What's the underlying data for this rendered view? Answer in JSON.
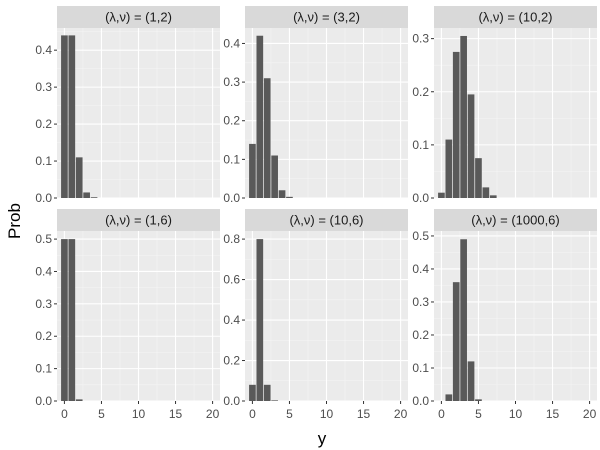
{
  "colors": {
    "panel_bg": "#ebebeb",
    "grid_major": "#ffffff",
    "grid_minor": "#f4f4f4",
    "strip_bg": "#d9d9d9",
    "bar_fill": "#595959",
    "tick_text": "#4d4d4d"
  },
  "chart_data": {
    "type": "bar",
    "facet_layout": "2 rows x 3 columns, shared x axis, free y axis",
    "xlabel": "y",
    "ylabel": "Prob",
    "xlim": [
      -1,
      21
    ],
    "x_ticks": [
      0,
      5,
      10,
      15,
      20
    ],
    "x": [
      0,
      1,
      2,
      3,
      4,
      5,
      6,
      7
    ],
    "panels": [
      {
        "strip": "(λ,ν) = (1,2)",
        "values": [
          0.44,
          0.44,
          0.11,
          0.015,
          0.002,
          0,
          0,
          0
        ],
        "ylim": [
          0,
          0.46
        ],
        "y_ticks": [
          0.0,
          0.1,
          0.2,
          0.3,
          0.4
        ],
        "y_tick_labels": [
          "0.0",
          "0.1",
          "0.2",
          "0.3",
          "0.4"
        ]
      },
      {
        "strip": "(λ,ν) = (3,2)",
        "values": [
          0.14,
          0.42,
          0.31,
          0.11,
          0.02,
          0.003,
          0,
          0
        ],
        "ylim": [
          0,
          0.44
        ],
        "y_ticks": [
          0.0,
          0.1,
          0.2,
          0.3,
          0.4
        ],
        "y_tick_labels": [
          "0.0",
          "0.1",
          "0.2",
          "0.3",
          "0.4"
        ]
      },
      {
        "strip": "(λ,ν) = (10,2)",
        "values": [
          0.01,
          0.11,
          0.275,
          0.305,
          0.195,
          0.075,
          0.02,
          0.005
        ],
        "ylim": [
          0,
          0.32
        ],
        "y_ticks": [
          0.0,
          0.1,
          0.2,
          0.3
        ],
        "y_tick_labels": [
          "0.0",
          "0.1",
          "0.2",
          "0.3"
        ]
      },
      {
        "strip": "(λ,ν) = (1,6)",
        "values": [
          0.5,
          0.5,
          0.005,
          0,
          0,
          0,
          0,
          0
        ],
        "ylim": [
          0,
          0.525
        ],
        "y_ticks": [
          0.0,
          0.1,
          0.2,
          0.3,
          0.4,
          0.5
        ],
        "y_tick_labels": [
          "0.0",
          "0.1",
          "0.2",
          "0.3",
          "0.4",
          "0.5"
        ]
      },
      {
        "strip": "(λ,ν) = (10,6)",
        "values": [
          0.08,
          0.8,
          0.08,
          0.003,
          0,
          0,
          0,
          0
        ],
        "ylim": [
          0,
          0.84
        ],
        "y_ticks": [
          0.0,
          0.2,
          0.4,
          0.6,
          0.8
        ],
        "y_tick_labels": [
          "0.0",
          "0.2",
          "0.4",
          "0.6",
          "0.8"
        ]
      },
      {
        "strip": "(λ,ν) = (1000,6)",
        "values": [
          0.0,
          0.02,
          0.36,
          0.49,
          0.12,
          0.005,
          0,
          0
        ],
        "ylim": [
          0,
          0.515
        ],
        "y_ticks": [
          0.0,
          0.1,
          0.2,
          0.3,
          0.4,
          0.5
        ],
        "y_tick_labels": [
          "0.0",
          "0.1",
          "0.2",
          "0.3",
          "0.4",
          "0.5"
        ]
      }
    ]
  }
}
